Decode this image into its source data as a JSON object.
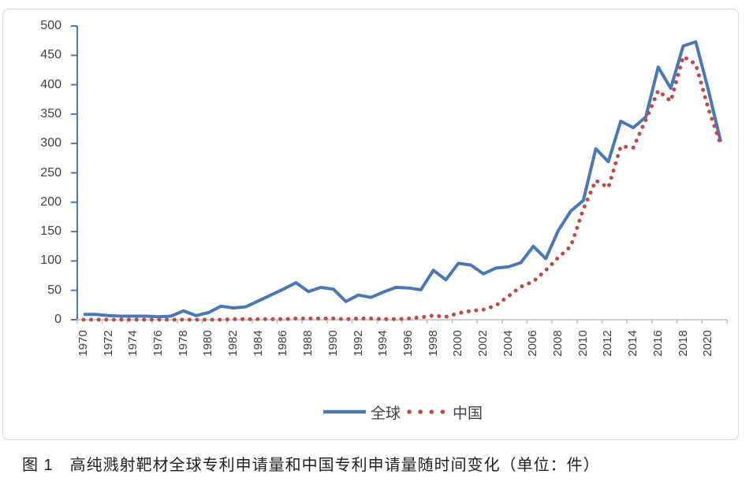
{
  "caption": "图 1　高纯溅射靶材全球专利申请量和中国专利申请量随时间变化（单位：件）",
  "colors": {
    "global_line": "#4a77b5",
    "china_line": "#be4b48",
    "axis_text": "#404040",
    "x_axis_line": "#bfbfbf",
    "y_axis_line": "#4a77b5",
    "frame_border": "#d9d9d9"
  },
  "legend": {
    "global_label": "全球",
    "china_label": "中国"
  },
  "chart_data": {
    "type": "line",
    "title": "",
    "xlabel": "",
    "ylabel": "",
    "ylim": [
      0,
      500
    ],
    "yticks": [
      0,
      50,
      100,
      150,
      200,
      250,
      300,
      350,
      400,
      450,
      500
    ],
    "grid": false,
    "legend_position": "bottom",
    "x": [
      1970,
      1971,
      1972,
      1973,
      1974,
      1975,
      1976,
      1977,
      1978,
      1979,
      1980,
      1981,
      1982,
      1983,
      1984,
      1985,
      1986,
      1987,
      1988,
      1989,
      1990,
      1991,
      1992,
      1993,
      1994,
      1995,
      1996,
      1997,
      1998,
      1999,
      2000,
      2001,
      2002,
      2003,
      2004,
      2005,
      2006,
      2007,
      2008,
      2009,
      2010,
      2011,
      2012,
      2013,
      2014,
      2015,
      2016,
      2017,
      2018,
      2019,
      2020,
      2021
    ],
    "xtick_labels": [
      "1970",
      "1972",
      "1974",
      "1976",
      "1978",
      "1980",
      "1982",
      "1984",
      "1986",
      "1988",
      "1990",
      "1992",
      "1994",
      "1996",
      "1998",
      "2000",
      "2002",
      "2004",
      "2006",
      "2008",
      "2010",
      "2012",
      "2014",
      "2016",
      "2018",
      "2020"
    ],
    "series": [
      {
        "name": "全球",
        "style": "solid",
        "color": "#4a77b5",
        "values": [
          9,
          9,
          7,
          6,
          6,
          6,
          5,
          6,
          15,
          7,
          12,
          23,
          20,
          22,
          32,
          42,
          52,
          63,
          48,
          55,
          52,
          31,
          42,
          38,
          47,
          55,
          54,
          51,
          84,
          68,
          96,
          93,
          78,
          88,
          90,
          97,
          125,
          104,
          152,
          185,
          203,
          291,
          269,
          338,
          327,
          345,
          430,
          394,
          466,
          473,
          392,
          303
        ]
      },
      {
        "name": "中国",
        "style": "dotted",
        "color": "#be4b48",
        "values": [
          0,
          0,
          0,
          0,
          0,
          0,
          0,
          0,
          0,
          0,
          0,
          0,
          1,
          1,
          1,
          1,
          1,
          2,
          2,
          2,
          2,
          1,
          2,
          2,
          1,
          1,
          2,
          4,
          7,
          5,
          11,
          15,
          17,
          24,
          40,
          56,
          65,
          84,
          106,
          125,
          188,
          237,
          225,
          295,
          293,
          340,
          390,
          372,
          448,
          435,
          360,
          298
        ]
      }
    ]
  }
}
